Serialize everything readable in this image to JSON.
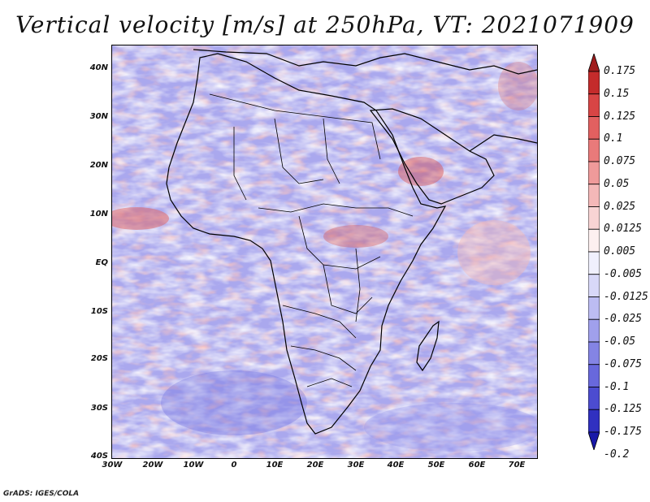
{
  "title": "Vertical velocity [m/s] at 250hPa, VT: 2021071909",
  "credit": "GrADS: IGES/COLA",
  "lat_labels": [
    "40N",
    "30N",
    "20N",
    "10N",
    "EQ",
    "10S",
    "20S",
    "30S",
    "40S"
  ],
  "lon_labels": [
    "30W",
    "20W",
    "10W",
    "0",
    "10E",
    "20E",
    "30E",
    "40E",
    "50E",
    "60E",
    "70E"
  ],
  "colorbar": {
    "labels": [
      "0.175",
      "0.15",
      "0.125",
      "0.1",
      "0.075",
      "0.05",
      "0.025",
      "0.0125",
      "0.005",
      "-0.005",
      "-0.0125",
      "-0.025",
      "-0.05",
      "-0.075",
      "-0.1",
      "-0.125",
      "-0.175",
      "-0.2"
    ],
    "colors": [
      "#a01c1c",
      "#c42b2b",
      "#d84545",
      "#e26060",
      "#e97a7a",
      "#ef9a9a",
      "#f4b8b8",
      "#f8d4d4",
      "#fdf0f0",
      "#f0f0fd",
      "#d8d8f8",
      "#bcbcf2",
      "#a0a0ec",
      "#8484e4",
      "#6868dc",
      "#4c4cd0",
      "#3030c0",
      "#1818a8"
    ]
  },
  "map": {
    "region": "Africa and surrounding oceans",
    "lon_range": [
      -30,
      75
    ],
    "lat_range": [
      -40,
      45
    ]
  }
}
